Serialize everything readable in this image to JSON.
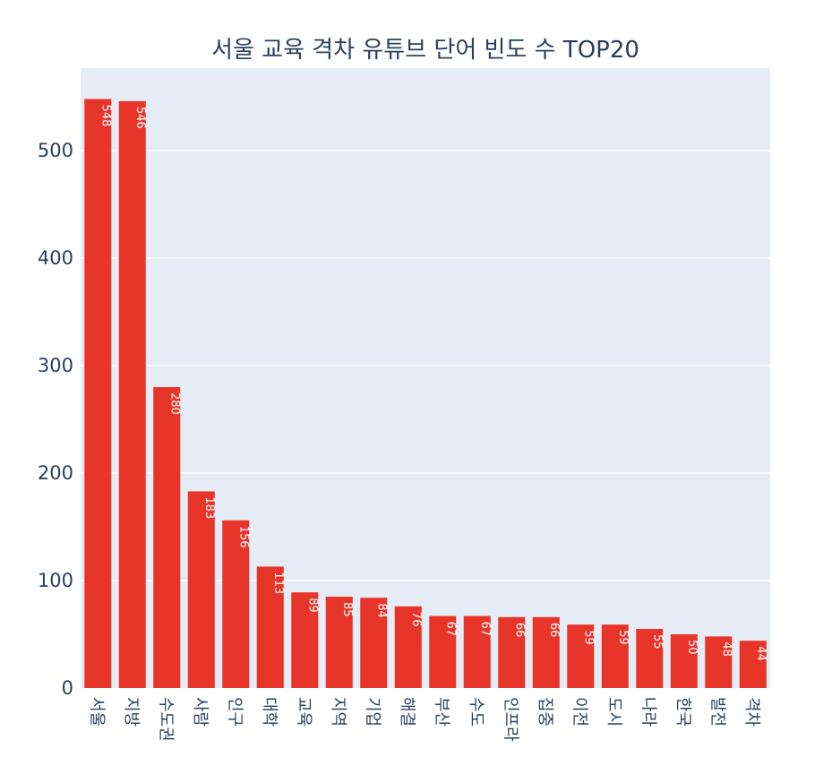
{
  "chart_data": {
    "type": "bar",
    "title": "서울 교육 격차 유튜브 단어 빈도 수 TOP20",
    "xlabel": "",
    "ylabel": "",
    "categories": [
      "서울",
      "지방",
      "수도권",
      "사람",
      "인구",
      "대학",
      "교육",
      "지역",
      "기업",
      "해결",
      "부산",
      "수도",
      "인프라",
      "집중",
      "이전",
      "도시",
      "나라",
      "한국",
      "발전",
      "격차"
    ],
    "values": [
      548,
      546,
      280,
      183,
      156,
      113,
      89,
      85,
      84,
      76,
      67,
      67,
      66,
      66,
      59,
      59,
      55,
      50,
      48,
      44
    ],
    "ylim": [
      0,
      576.8
    ],
    "yticks": [
      0,
      100,
      200,
      300,
      400,
      500
    ],
    "grid": true,
    "bar_color": "#e8352a",
    "plot_background": "#e5ecf6",
    "data_labels": "inside-rotated"
  }
}
